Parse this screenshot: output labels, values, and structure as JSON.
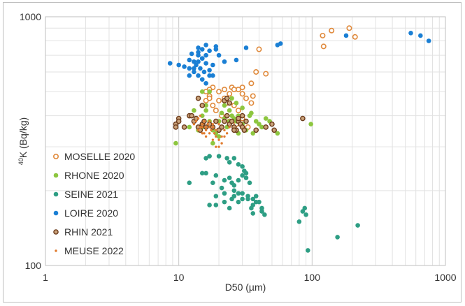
{
  "chart_data": {
    "type": "scatter",
    "title": "",
    "xlabel": "D50 (µm)",
    "ylabel_sup": "40",
    "ylabel": "K (Bq/kg)",
    "xscale": "log",
    "yscale": "log",
    "xlim": [
      1,
      1000
    ],
    "ylim": [
      100,
      1000
    ],
    "x_ticks": [
      "1",
      "10",
      "100",
      "1000"
    ],
    "y_ticks": [
      "100",
      "1000"
    ],
    "grid": true,
    "legend_position": "left",
    "series": [
      {
        "name": "MOSELLE 2020",
        "color": "#e08a3c",
        "marker": "open-circle",
        "points": [
          [
            120,
            840
          ],
          [
            122,
            760
          ],
          [
            140,
            880
          ],
          [
            190,
            900
          ],
          [
            210,
            830
          ],
          [
            40,
            740
          ],
          [
            38,
            600
          ],
          [
            45,
            590
          ],
          [
            35,
            540
          ],
          [
            36,
            480
          ],
          [
            30,
            520
          ],
          [
            28,
            510
          ],
          [
            25,
            520
          ],
          [
            22,
            510
          ],
          [
            20,
            500
          ],
          [
            18,
            520
          ],
          [
            17,
            510
          ],
          [
            17,
            480
          ],
          [
            16,
            500
          ],
          [
            16,
            460
          ],
          [
            18,
            440
          ],
          [
            20,
            460
          ],
          [
            22,
            470
          ],
          [
            24,
            490
          ],
          [
            26,
            510
          ],
          [
            30,
            490
          ],
          [
            32,
            470
          ],
          [
            35,
            450
          ],
          [
            19,
            420
          ],
          [
            21,
            400
          ],
          [
            24,
            380
          ],
          [
            27,
            370
          ],
          [
            30,
            390
          ],
          [
            33,
            360
          ],
          [
            28,
            420
          ],
          [
            26,
            440
          ],
          [
            17,
            470
          ],
          [
            23,
            450
          ]
        ]
      },
      {
        "name": "RHONE 2020",
        "color": "#8dc63f",
        "marker": "filled-circle",
        "points": [
          [
            9.5,
            310
          ],
          [
            12,
            360
          ],
          [
            13,
            380
          ],
          [
            14,
            350
          ],
          [
            15,
            400
          ],
          [
            15,
            360
          ],
          [
            16,
            420
          ],
          [
            17,
            380
          ],
          [
            18,
            350
          ],
          [
            19,
            340
          ],
          [
            20,
            380
          ],
          [
            21,
            410
          ],
          [
            22,
            390
          ],
          [
            23,
            360
          ],
          [
            24,
            380
          ],
          [
            25,
            400
          ],
          [
            26,
            360
          ],
          [
            27,
            380
          ],
          [
            28,
            340
          ],
          [
            30,
            370
          ],
          [
            32,
            350
          ],
          [
            34,
            400
          ],
          [
            36,
            340
          ],
          [
            38,
            380
          ],
          [
            40,
            370
          ],
          [
            42,
            360
          ],
          [
            45,
            390
          ],
          [
            48,
            380
          ],
          [
            55,
            340
          ],
          [
            98,
            370
          ],
          [
            13,
            420
          ],
          [
            14,
            470
          ],
          [
            15,
            500
          ],
          [
            17,
            500
          ],
          [
            22,
            440
          ],
          [
            25,
            470
          ],
          [
            27,
            450
          ],
          [
            20,
            330
          ],
          [
            18,
            310
          ],
          [
            24,
            420
          ],
          [
            30,
            430
          ],
          [
            35,
            410
          ],
          [
            16,
            440
          ],
          [
            28,
            400
          ],
          [
            21,
            360
          ],
          [
            26,
            390
          ]
        ]
      },
      {
        "name": "SEINE 2021",
        "color": "#2e9e84",
        "marker": "filled-circle",
        "points": [
          [
            16,
            270
          ],
          [
            17,
            275
          ],
          [
            20,
            275
          ],
          [
            23,
            270
          ],
          [
            24,
            260
          ],
          [
            26,
            270
          ],
          [
            28,
            255
          ],
          [
            30,
            250
          ],
          [
            31,
            240
          ],
          [
            32,
            235
          ],
          [
            15,
            235
          ],
          [
            16,
            235
          ],
          [
            19,
            230
          ],
          [
            22,
            220
          ],
          [
            24,
            225
          ],
          [
            25,
            215
          ],
          [
            26,
            210
          ],
          [
            28,
            220
          ],
          [
            30,
            230
          ],
          [
            32,
            225
          ],
          [
            34,
            215
          ],
          [
            12,
            215
          ],
          [
            18,
            215
          ],
          [
            21,
            205
          ],
          [
            26,
            200
          ],
          [
            28,
            195
          ],
          [
            30,
            195
          ],
          [
            33,
            190
          ],
          [
            36,
            185
          ],
          [
            38,
            190
          ],
          [
            40,
            180
          ],
          [
            19,
            190
          ],
          [
            22,
            195
          ],
          [
            25,
            185
          ],
          [
            28,
            180
          ],
          [
            30,
            185
          ],
          [
            33,
            185
          ],
          [
            35,
            170
          ],
          [
            36,
            175
          ],
          [
            38,
            180
          ],
          [
            42,
            170
          ],
          [
            44,
            160
          ],
          [
            17,
            175
          ],
          [
            19,
            175
          ],
          [
            22,
            180
          ],
          [
            24,
            170
          ],
          [
            36,
            162
          ],
          [
            42,
            165
          ],
          [
            80,
            150
          ],
          [
            85,
            165
          ],
          [
            88,
            170
          ],
          [
            90,
            160
          ],
          [
            220,
            145
          ],
          [
            155,
            130
          ],
          [
            93,
            115
          ],
          [
            26,
            190
          ]
        ]
      },
      {
        "name": "LOIRE 2020",
        "color": "#1a7fd4",
        "marker": "filled-circle",
        "points": [
          [
            8.6,
            650
          ],
          [
            10,
            640
          ],
          [
            11,
            630
          ],
          [
            12,
            670
          ],
          [
            12,
            620
          ],
          [
            12.5,
            710
          ],
          [
            13,
            600
          ],
          [
            13,
            660
          ],
          [
            13.5,
            640
          ],
          [
            14,
            700
          ],
          [
            14,
            580
          ],
          [
            14.5,
            620
          ],
          [
            15,
            680
          ],
          [
            15,
            560
          ],
          [
            15.5,
            600
          ],
          [
            16,
            650
          ],
          [
            16,
            700
          ],
          [
            16,
            540
          ],
          [
            17,
            610
          ],
          [
            17,
            580
          ],
          [
            18,
            640
          ],
          [
            19,
            740
          ],
          [
            20,
            700
          ],
          [
            22,
            660
          ],
          [
            14,
            750
          ],
          [
            16,
            770
          ],
          [
            19,
            760
          ],
          [
            14,
            720
          ],
          [
            15,
            740
          ],
          [
            17,
            730
          ],
          [
            15,
            680
          ],
          [
            18,
            580
          ],
          [
            12,
            580
          ],
          [
            13,
            620
          ],
          [
            14,
            660
          ],
          [
            27,
            670
          ],
          [
            32,
            750
          ],
          [
            55,
            770
          ],
          [
            58,
            780
          ],
          [
            180,
            840
          ],
          [
            550,
            860
          ],
          [
            650,
            840
          ],
          [
            750,
            800
          ]
        ]
      },
      {
        "name": "RHIN 2021",
        "color": "#6b3a1b",
        "marker": "ringed-circle",
        "points": [
          [
            9.5,
            370
          ],
          [
            9.5,
            360
          ],
          [
            10,
            390
          ],
          [
            10,
            380
          ],
          [
            11,
            360
          ],
          [
            12,
            400
          ],
          [
            12.5,
            400
          ],
          [
            13,
            380
          ],
          [
            13.5,
            390
          ],
          [
            14,
            360
          ],
          [
            14.5,
            350
          ],
          [
            15,
            370
          ],
          [
            15.5,
            380
          ],
          [
            16,
            360
          ],
          [
            17,
            370
          ],
          [
            18,
            360
          ],
          [
            19,
            380
          ],
          [
            20,
            350
          ],
          [
            21,
            360
          ],
          [
            22,
            380
          ],
          [
            23,
            400
          ],
          [
            24,
            370
          ],
          [
            25,
            380
          ],
          [
            26,
            360
          ],
          [
            27,
            350
          ],
          [
            28,
            380
          ],
          [
            29,
            370
          ],
          [
            30,
            360
          ],
          [
            31,
            350
          ],
          [
            32,
            380
          ],
          [
            22,
            460
          ],
          [
            23,
            470
          ],
          [
            24,
            450
          ],
          [
            14,
            470
          ],
          [
            15,
            440
          ],
          [
            26,
            350
          ],
          [
            38,
            350
          ],
          [
            45,
            360
          ],
          [
            50,
            370
          ],
          [
            52,
            350
          ],
          [
            85,
            390
          ],
          [
            30,
            400
          ],
          [
            28,
            390
          ]
        ]
      },
      {
        "name": "MEUSE 2022",
        "color": "#e07b2e",
        "marker": "small-dot",
        "points": [
          [
            13,
            370
          ],
          [
            13.5,
            380
          ],
          [
            14,
            390
          ],
          [
            14.5,
            400
          ],
          [
            15,
            370
          ],
          [
            15.5,
            380
          ],
          [
            16,
            360
          ],
          [
            16.5,
            370
          ],
          [
            17,
            380
          ],
          [
            17.5,
            350
          ],
          [
            18,
            360
          ],
          [
            18.5,
            340
          ],
          [
            19,
            330
          ],
          [
            20,
            320
          ],
          [
            21,
            310
          ],
          [
            22,
            330
          ],
          [
            23,
            340
          ],
          [
            14,
            350
          ],
          [
            15,
            340
          ],
          [
            16,
            330
          ],
          [
            17,
            340
          ],
          [
            18,
            320
          ],
          [
            19,
            300
          ],
          [
            20,
            300
          ],
          [
            21,
            330
          ],
          [
            15,
            360
          ],
          [
            16,
            350
          ],
          [
            17,
            360
          ],
          [
            18,
            370
          ],
          [
            19,
            350
          ],
          [
            20,
            370
          ],
          [
            22,
            350
          ],
          [
            24,
            360
          ],
          [
            14.5,
            360
          ],
          [
            15.5,
            340
          ]
        ]
      }
    ]
  }
}
